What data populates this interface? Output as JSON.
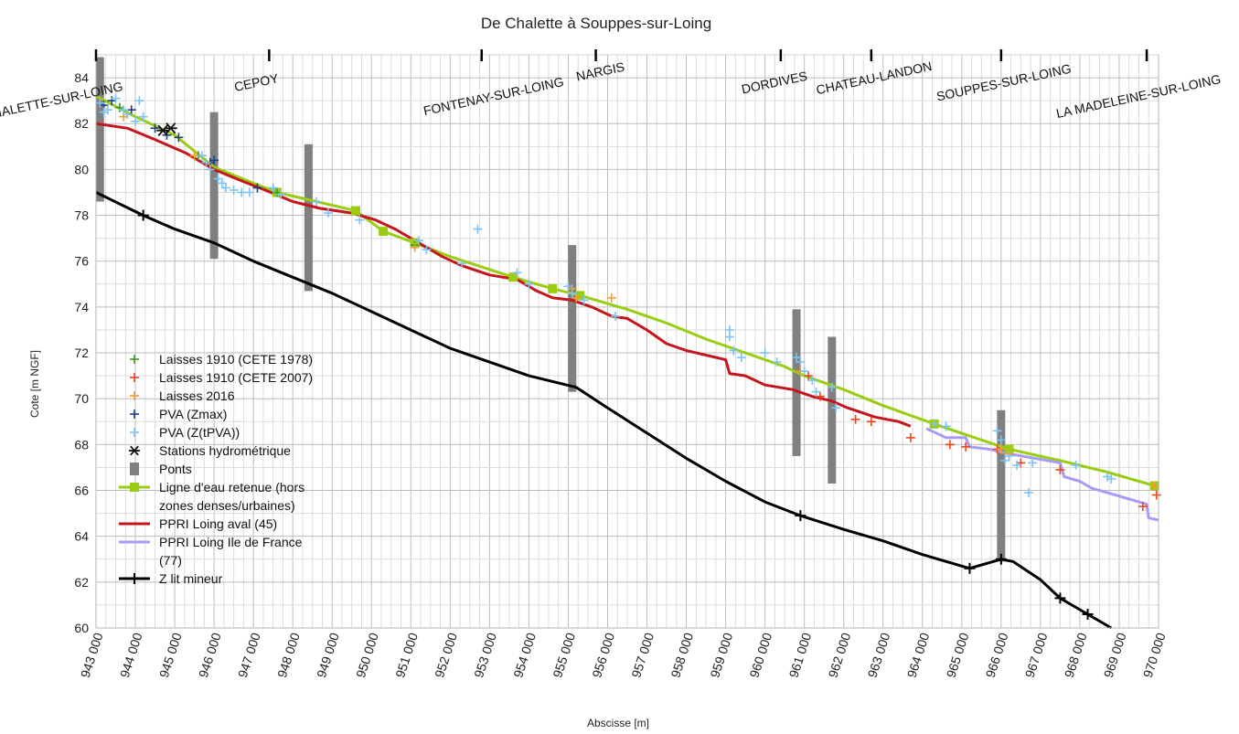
{
  "chart_data": {
    "type": "line",
    "title": "De Chalette à Souppes-sur-Loing",
    "xlabel": "Abscisse [m]",
    "ylabel": "Cote [m NGF]",
    "xlim": [
      943000,
      970000
    ],
    "ylim": [
      60,
      85
    ],
    "x_ticks": [
      943000,
      944000,
      945000,
      946000,
      947000,
      948000,
      949000,
      950000,
      951000,
      952000,
      953000,
      954000,
      955000,
      956000,
      957000,
      958000,
      959000,
      960000,
      961000,
      962000,
      963000,
      964000,
      965000,
      966000,
      967000,
      968000,
      969000,
      970000
    ],
    "x_tick_labels": [
      "943 000",
      "944 000",
      "945 000",
      "946 000",
      "947 000",
      "948 000",
      "949 000",
      "950 000",
      "951 000",
      "952 000",
      "953 000",
      "954 000",
      "955 000",
      "956 000",
      "957 000",
      "958 000",
      "959 000",
      "960 000",
      "961 000",
      "962 000",
      "963 000",
      "964 000",
      "965 000",
      "966 000",
      "967 000",
      "968 000",
      "969 000",
      "970 000"
    ],
    "y_ticks": [
      60,
      62,
      64,
      66,
      68,
      70,
      72,
      74,
      76,
      78,
      80,
      82,
      84
    ],
    "grid": true,
    "legend_position": "left",
    "towns": [
      {
        "name": "CHALETTE-SUR-LOING",
        "x": 943000
      },
      {
        "name": "CEPOY",
        "x": 947400
      },
      {
        "name": "FONTENAY-SUR-LOING",
        "x": 952800
      },
      {
        "name": "NARGIS",
        "x": 955700
      },
      {
        "name": "DORDIVES",
        "x": 960400
      },
      {
        "name": "CHATEAU-LANDON",
        "x": 962700
      },
      {
        "name": "SOUPPES-SUR-LOING",
        "x": 966000
      },
      {
        "name": "LA MADELEINE-SUR-LOING",
        "x": 969700
      }
    ],
    "series": [
      {
        "name": "Laisses 1910 (CETE 1978)",
        "kind": "scatter",
        "marker": "plus",
        "color": "#3a9b25",
        "points": [
          [
            943600,
            82.7
          ],
          [
            945600,
            80.6
          ],
          [
            947600,
            79.0
          ],
          [
            951100,
            76.7
          ]
        ]
      },
      {
        "name": "Laisses 1910 (CETE 2007)",
        "kind": "scatter",
        "marker": "plus",
        "color": "#f0441e",
        "points": [
          [
            961100,
            71.0
          ],
          [
            961400,
            70.1
          ],
          [
            962300,
            69.1
          ],
          [
            962700,
            69.0
          ],
          [
            963700,
            68.3
          ],
          [
            964700,
            68.0
          ],
          [
            965100,
            67.9
          ],
          [
            965900,
            67.8
          ],
          [
            966500,
            67.2
          ],
          [
            967500,
            66.9
          ],
          [
            969600,
            65.3
          ],
          [
            969950,
            65.8
          ]
        ]
      },
      {
        "name": "Laisses 2016",
        "kind": "scatter",
        "marker": "plus",
        "color": "#f39a33",
        "points": [
          [
            943700,
            82.3
          ],
          [
            945500,
            80.6
          ],
          [
            951100,
            76.6
          ],
          [
            955100,
            74.8
          ],
          [
            955200,
            74.4
          ],
          [
            956100,
            74.4
          ],
          [
            960900,
            71.2
          ],
          [
            964300,
            68.9
          ],
          [
            966000,
            67.8
          ],
          [
            966200,
            67.6
          ],
          [
            969900,
            66.2
          ]
        ]
      },
      {
        "name": "PVA (Zmax)",
        "kind": "scatter",
        "marker": "plus",
        "color": "#1f3f86",
        "points": [
          [
            944500,
            81.8
          ],
          [
            944800,
            81.5
          ],
          [
            945100,
            81.4
          ],
          [
            945900,
            80.3
          ],
          [
            946000,
            80.4
          ],
          [
            947100,
            79.2
          ],
          [
            943200,
            82.8
          ],
          [
            943400,
            83.0
          ],
          [
            943900,
            82.6
          ]
        ]
      },
      {
        "name": "PVA (Z(tPVA))",
        "kind": "scatter",
        "marker": "plus",
        "color": "#7cc3f3",
        "points": [
          [
            943100,
            82.9
          ],
          [
            943200,
            82.5
          ],
          [
            943300,
            82.6
          ],
          [
            943500,
            83.1
          ],
          [
            943700,
            82.6
          ],
          [
            943800,
            82.4
          ],
          [
            944000,
            82.1
          ],
          [
            944100,
            83.0
          ],
          [
            944200,
            82.3
          ],
          [
            945700,
            80.6
          ],
          [
            945800,
            80.3
          ],
          [
            945900,
            80.0
          ],
          [
            946100,
            79.6
          ],
          [
            946200,
            79.4
          ],
          [
            946300,
            79.2
          ],
          [
            946500,
            79.1
          ],
          [
            946700,
            79.0
          ],
          [
            946900,
            79.0
          ],
          [
            947500,
            79.2
          ],
          [
            947700,
            78.9
          ],
          [
            948600,
            78.6
          ],
          [
            948900,
            78.1
          ],
          [
            949700,
            77.8
          ],
          [
            951200,
            76.9
          ],
          [
            951400,
            76.5
          ],
          [
            952300,
            75.9
          ],
          [
            952700,
            77.4
          ],
          [
            953700,
            75.5
          ],
          [
            954000,
            75.0
          ],
          [
            955000,
            74.9
          ],
          [
            955100,
            74.6
          ],
          [
            955400,
            74.3
          ],
          [
            956200,
            73.6
          ],
          [
            959100,
            73.0
          ],
          [
            959100,
            72.7
          ],
          [
            959200,
            72.1
          ],
          [
            959400,
            71.8
          ],
          [
            960000,
            72.0
          ],
          [
            960300,
            71.6
          ],
          [
            960800,
            71.8
          ],
          [
            960900,
            71.6
          ],
          [
            961000,
            71.2
          ],
          [
            961200,
            70.8
          ],
          [
            961300,
            70.3
          ],
          [
            961700,
            70.5
          ],
          [
            961800,
            69.6
          ],
          [
            964300,
            68.9
          ],
          [
            964600,
            68.8
          ],
          [
            965900,
            68.6
          ],
          [
            966000,
            68.2
          ],
          [
            966100,
            67.3
          ],
          [
            966200,
            67.5
          ],
          [
            966400,
            67.1
          ],
          [
            966700,
            65.9
          ],
          [
            966800,
            67.2
          ],
          [
            967900,
            67.1
          ],
          [
            968700,
            66.6
          ],
          [
            968800,
            66.5
          ]
        ]
      },
      {
        "name": "Stations hydrométrique",
        "kind": "scatter",
        "marker": "asterisk",
        "color": "#111111",
        "points": [
          [
            944700,
            81.7
          ],
          [
            944900,
            81.8
          ]
        ]
      },
      {
        "name": "Ponts",
        "kind": "bars",
        "color": "#808080",
        "points": [
          [
            943100,
            78.6,
            84.9
          ],
          [
            946000,
            76.1,
            82.5
          ],
          [
            948400,
            74.7,
            81.1
          ],
          [
            955100,
            70.3,
            76.7
          ],
          [
            960800,
            67.5,
            73.9
          ],
          [
            961700,
            66.3,
            72.7
          ],
          [
            966000,
            62.9,
            69.5
          ]
        ]
      },
      {
        "name": "Ligne d'eau retenue (hors zones denses/urbaines)",
        "kind": "line",
        "marker": "square",
        "color": "#9acd12",
        "points": [
          [
            943000,
            83.2
          ],
          [
            944000,
            82.3
          ],
          [
            945000,
            81.5
          ],
          [
            946000,
            80.1
          ],
          [
            947000,
            79.4
          ],
          [
            947600,
            79.0
          ],
          [
            948600,
            78.6
          ],
          [
            949600,
            78.2
          ],
          [
            950300,
            77.3
          ],
          [
            951100,
            76.8
          ],
          [
            952000,
            76.2
          ],
          [
            953600,
            75.3
          ],
          [
            954600,
            74.8
          ],
          [
            955300,
            74.5
          ],
          [
            956500,
            73.9
          ],
          [
            957500,
            73.3
          ],
          [
            958500,
            72.6
          ],
          [
            959500,
            72.0
          ],
          [
            960500,
            71.4
          ],
          [
            961000,
            71.0
          ],
          [
            962000,
            70.4
          ],
          [
            963000,
            69.7
          ],
          [
            964300,
            68.9
          ],
          [
            965500,
            68.2
          ],
          [
            966200,
            67.8
          ],
          [
            967500,
            67.3
          ],
          [
            968700,
            66.8
          ],
          [
            969900,
            66.2
          ]
        ]
      },
      {
        "name": "PPRI Loing aval (45)",
        "kind": "line",
        "color": "#c4161c",
        "points": [
          [
            943000,
            82.0
          ],
          [
            943800,
            81.8
          ],
          [
            944500,
            81.3
          ],
          [
            945300,
            80.7
          ],
          [
            946000,
            80.0
          ],
          [
            946700,
            79.5
          ],
          [
            947300,
            79.1
          ],
          [
            948000,
            78.6
          ],
          [
            948700,
            78.3
          ],
          [
            949500,
            78.1
          ],
          [
            950100,
            77.8
          ],
          [
            950600,
            77.4
          ],
          [
            951200,
            76.8
          ],
          [
            951800,
            76.2
          ],
          [
            952300,
            75.8
          ],
          [
            953000,
            75.4
          ],
          [
            953700,
            75.2
          ],
          [
            954200,
            74.7
          ],
          [
            954600,
            74.4
          ],
          [
            955100,
            74.3
          ],
          [
            955600,
            74.0
          ],
          [
            956100,
            73.6
          ],
          [
            956500,
            73.5
          ],
          [
            957000,
            73.0
          ],
          [
            957500,
            72.4
          ],
          [
            958000,
            72.1
          ],
          [
            958500,
            71.9
          ],
          [
            959000,
            71.7
          ],
          [
            959100,
            71.1
          ],
          [
            959500,
            71.0
          ],
          [
            960000,
            70.6
          ],
          [
            960700,
            70.4
          ],
          [
            961200,
            70.1
          ],
          [
            961700,
            69.9
          ],
          [
            962100,
            69.6
          ],
          [
            962800,
            69.2
          ],
          [
            963400,
            69.0
          ],
          [
            963700,
            68.8
          ]
        ]
      },
      {
        "name": "PPRI Loing Ile de France (77)",
        "kind": "line",
        "color": "#a79cf4",
        "points": [
          [
            964100,
            68.7
          ],
          [
            964600,
            68.3
          ],
          [
            965100,
            68.3
          ],
          [
            965200,
            67.9
          ],
          [
            965700,
            67.8
          ],
          [
            966200,
            67.6
          ],
          [
            967500,
            67.2
          ],
          [
            967600,
            66.6
          ],
          [
            968000,
            66.4
          ],
          [
            968300,
            66.1
          ],
          [
            969100,
            65.7
          ],
          [
            969700,
            65.4
          ],
          [
            969750,
            64.8
          ],
          [
            970000,
            64.7
          ]
        ]
      },
      {
        "name": "Z lit mineur",
        "kind": "line",
        "marker": "plus",
        "color": "#000000",
        "points": [
          [
            943000,
            79.0
          ],
          [
            944200,
            78.0
          ],
          [
            945000,
            77.4
          ],
          [
            946000,
            76.8
          ],
          [
            947000,
            76.0
          ],
          [
            948000,
            75.3
          ],
          [
            949000,
            74.6
          ],
          [
            950000,
            73.8
          ],
          [
            951000,
            73.0
          ],
          [
            952000,
            72.2
          ],
          [
            953000,
            71.6
          ],
          [
            954000,
            71.0
          ],
          [
            955200,
            70.5
          ],
          [
            956000,
            69.6
          ],
          [
            957000,
            68.5
          ],
          [
            958000,
            67.4
          ],
          [
            959000,
            66.4
          ],
          [
            960000,
            65.5
          ],
          [
            960900,
            64.9
          ],
          [
            962000,
            64.3
          ],
          [
            963000,
            63.8
          ],
          [
            964000,
            63.2
          ],
          [
            965200,
            62.6
          ],
          [
            966000,
            63.0
          ],
          [
            966300,
            62.9
          ],
          [
            967000,
            62.1
          ],
          [
            967500,
            61.3
          ],
          [
            968200,
            60.6
          ],
          [
            968800,
            60.0
          ]
        ]
      }
    ],
    "legend_labels": [
      {
        "series": 0,
        "lines": [
          "Laisses 1910 (CETE 1978)"
        ]
      },
      {
        "series": 1,
        "lines": [
          "Laisses 1910 (CETE 2007)"
        ]
      },
      {
        "series": 2,
        "lines": [
          "Laisses 2016"
        ]
      },
      {
        "series": 3,
        "lines": [
          "PVA (Zmax)"
        ]
      },
      {
        "series": 4,
        "lines": [
          "PVA (Z(tPVA))"
        ]
      },
      {
        "series": 5,
        "lines": [
          "Stations hydrométrique"
        ]
      },
      {
        "series": 6,
        "lines": [
          "Ponts"
        ]
      },
      {
        "series": 7,
        "lines": [
          "Ligne d'eau retenue (hors",
          "zones denses/urbaines)"
        ]
      },
      {
        "series": 8,
        "lines": [
          "PPRI Loing aval (45)"
        ]
      },
      {
        "series": 9,
        "lines": [
          "PPRI Loing Ile de France",
          "(77)"
        ]
      },
      {
        "series": 10,
        "lines": [
          "Z lit mineur"
        ]
      }
    ]
  }
}
